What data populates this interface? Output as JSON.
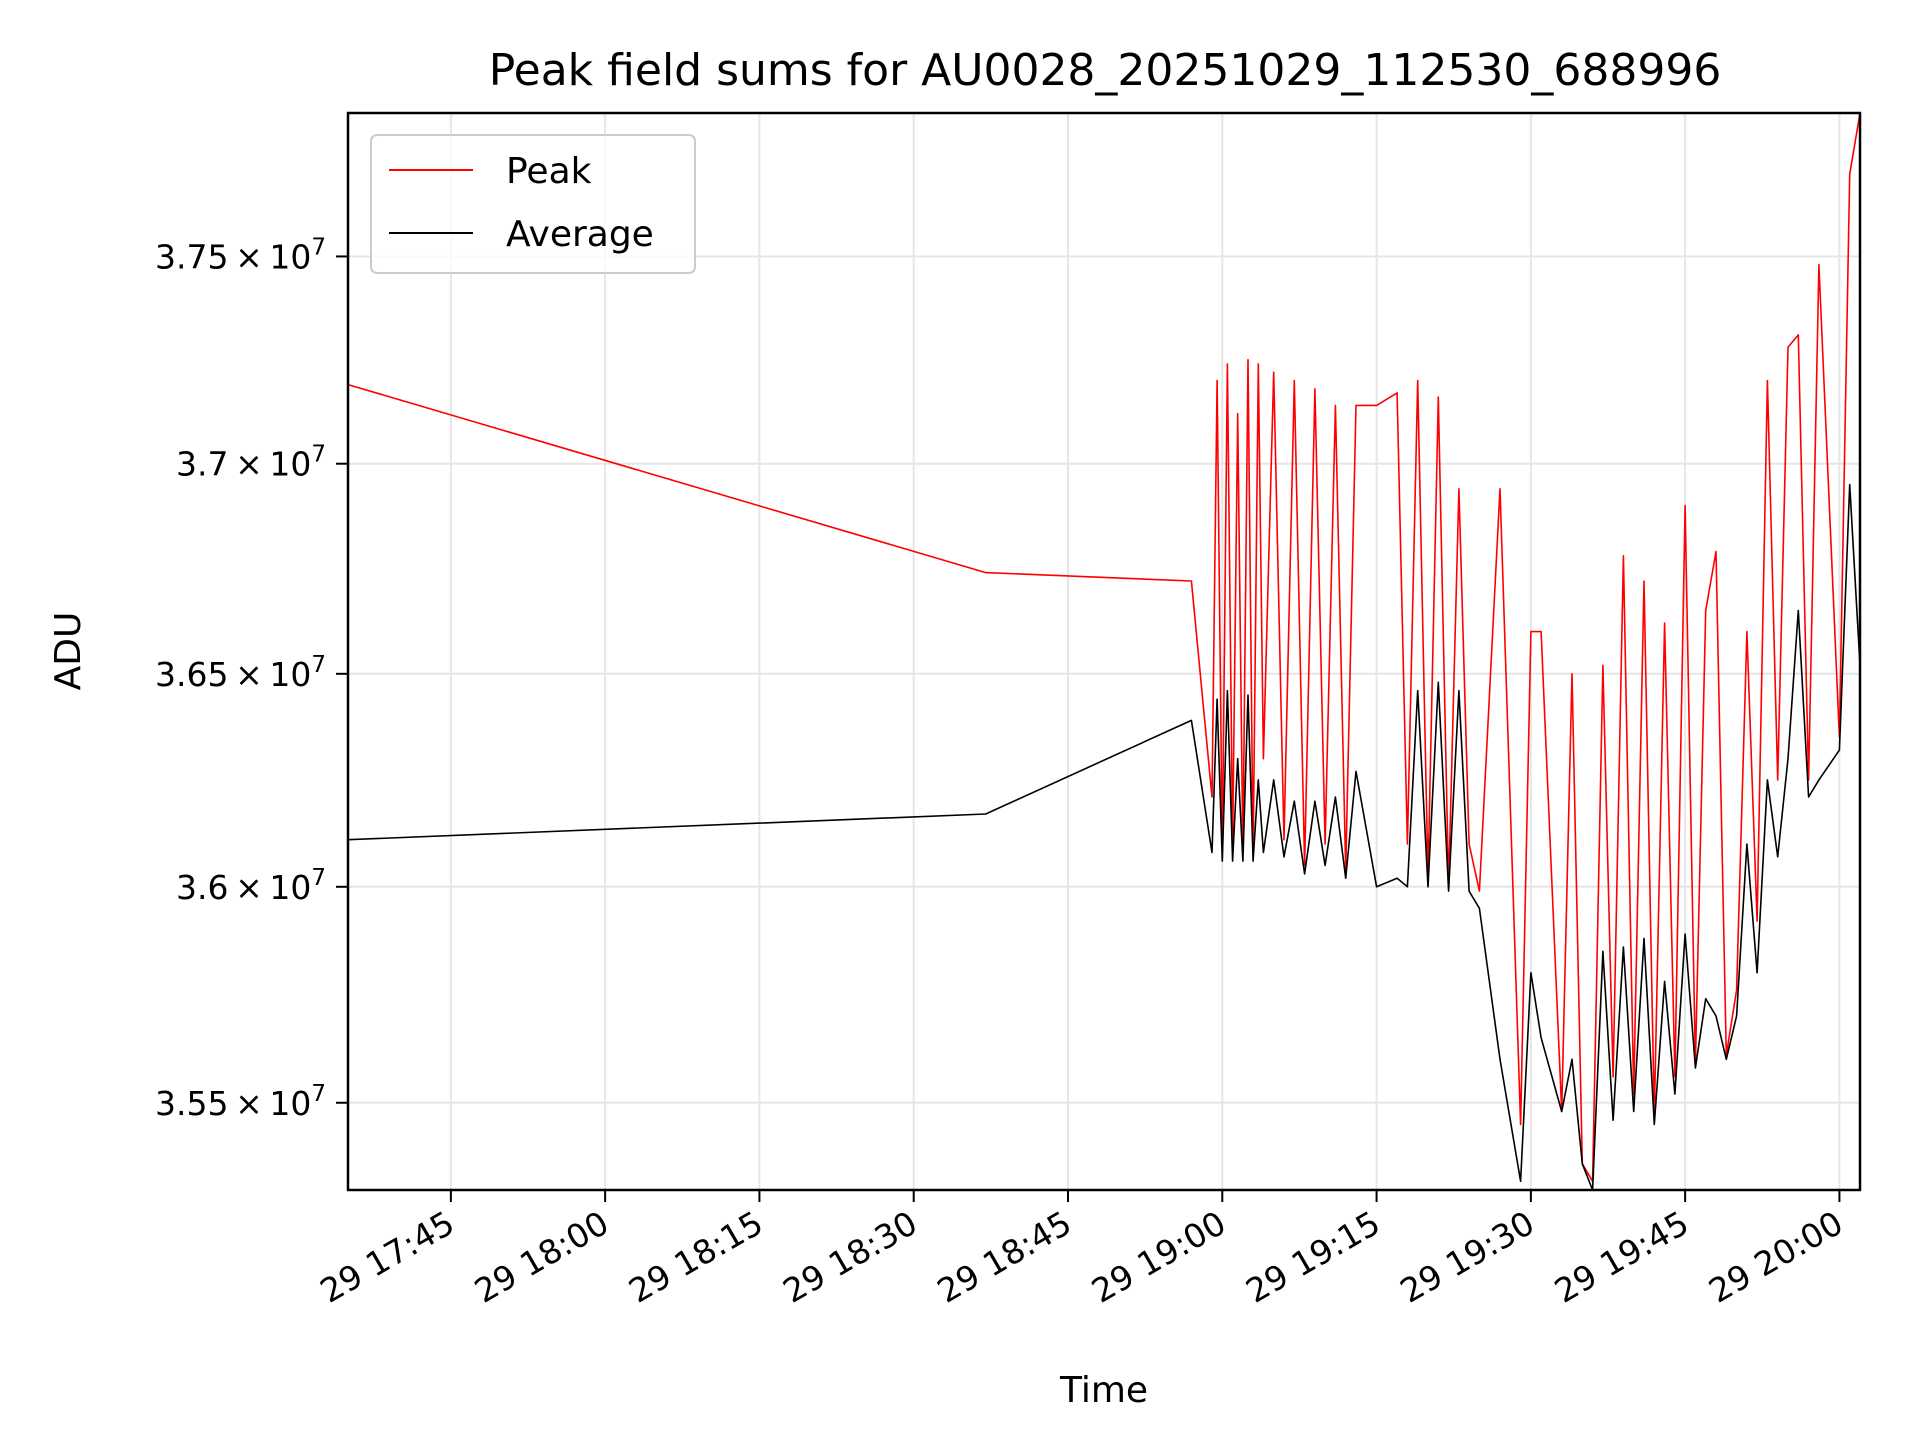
{
  "chart_data": {
    "type": "line",
    "title": "Peak field sums for AU0028_20251029_112530_688996",
    "xlabel": "Time",
    "ylabel": "ADU",
    "x_axis_type": "time",
    "x_range": [
      "2025-10-29 17:35",
      "2025-10-29 20:02"
    ],
    "x_ticks": [
      "2025-10-29 17:45",
      "2025-10-29 18:00",
      "2025-10-29 18:15",
      "2025-10-29 18:30",
      "2025-10-29 18:45",
      "2025-10-29 19:00",
      "2025-10-29 19:15",
      "2025-10-29 19:30",
      "2025-10-29 19:45",
      "2025-10-29 20:00"
    ],
    "x_tick_labels": [
      "29 17:45",
      "29 18:00",
      "29 18:15",
      "29 18:30",
      "29 18:45",
      "29 19:00",
      "29 19:15",
      "29 19:30",
      "29 19:45",
      "29 20:00"
    ],
    "y_scale": "log",
    "ylim": [
      35300000,
      37850000
    ],
    "y_ticks": [
      35500000,
      36000000,
      36500000,
      37000000,
      37500000
    ],
    "y_tick_mantissas": [
      "3.55",
      "3.6",
      "3.65",
      "3.7",
      "3.75"
    ],
    "y_tick_base": "10",
    "y_tick_exponent": "7",
    "grid": true,
    "legend_position": "top-left",
    "series": [
      {
        "name": "Peak",
        "color": "#ff0000",
        "x": [
          "2025-10-29 17:35",
          "2025-10-29 18:37",
          "2025-10-29 18:57",
          "2025-10-29 18:59",
          "2025-10-29 18:59:30",
          "2025-10-29 19:00",
          "2025-10-29 19:00:30",
          "2025-10-29 19:01",
          "2025-10-29 19:01:30",
          "2025-10-29 19:02",
          "2025-10-29 19:02:30",
          "2025-10-29 19:03",
          "2025-10-29 19:03:30",
          "2025-10-29 19:04",
          "2025-10-29 19:05",
          "2025-10-29 19:06",
          "2025-10-29 19:07",
          "2025-10-29 19:08",
          "2025-10-29 19:09",
          "2025-10-29 19:10",
          "2025-10-29 19:11",
          "2025-10-29 19:12",
          "2025-10-29 19:13",
          "2025-10-29 19:15",
          "2025-10-29 19:17",
          "2025-10-29 19:18",
          "2025-10-29 19:19",
          "2025-10-29 19:20",
          "2025-10-29 19:21",
          "2025-10-29 19:22",
          "2025-10-29 19:23",
          "2025-10-29 19:24",
          "2025-10-29 19:25",
          "2025-10-29 19:27",
          "2025-10-29 19:29",
          "2025-10-29 19:30",
          "2025-10-29 19:31",
          "2025-10-29 19:33",
          "2025-10-29 19:34",
          "2025-10-29 19:35",
          "2025-10-29 19:36",
          "2025-10-29 19:37",
          "2025-10-29 19:38",
          "2025-10-29 19:39",
          "2025-10-29 19:40",
          "2025-10-29 19:41",
          "2025-10-29 19:42",
          "2025-10-29 19:43",
          "2025-10-29 19:44",
          "2025-10-29 19:45",
          "2025-10-29 19:46",
          "2025-10-29 19:47",
          "2025-10-29 19:48",
          "2025-10-29 19:49",
          "2025-10-29 19:50",
          "2025-10-29 19:51",
          "2025-10-29 19:52",
          "2025-10-29 19:53",
          "2025-10-29 19:54",
          "2025-10-29 19:55",
          "2025-10-29 19:56",
          "2025-10-29 19:57",
          "2025-10-29 19:58",
          "2025-10-29 20:00",
          "2025-10-29 20:01",
          "2025-10-29 20:02"
        ],
        "values": [
          37190000,
          36740000,
          36720000,
          36210000,
          37200000,
          36080000,
          37240000,
          36100000,
          37120000,
          36080000,
          37250000,
          36070000,
          37240000,
          36300000,
          37220000,
          36110000,
          37200000,
          36050000,
          37180000,
          36100000,
          37140000,
          36040000,
          37140000,
          37140000,
          37170000,
          36100000,
          37200000,
          36020000,
          37160000,
          36000000,
          36940000,
          36100000,
          35990000,
          36940000,
          35450000,
          36600000,
          36600000,
          35480000,
          36500000,
          35360000,
          35320000,
          36520000,
          35560000,
          36780000,
          35520000,
          36720000,
          35470000,
          36620000,
          35560000,
          36900000,
          35590000,
          36650000,
          36790000,
          35610000,
          35760000,
          36600000,
          35920000,
          37200000,
          36250000,
          37280000,
          37310000,
          36250000,
          37480000,
          36350000,
          37700000,
          37850000
        ]
      },
      {
        "name": "Average",
        "color": "#000000",
        "x": [
          "2025-10-29 17:35",
          "2025-10-29 18:37",
          "2025-10-29 18:57",
          "2025-10-29 18:59",
          "2025-10-29 18:59:30",
          "2025-10-29 19:00",
          "2025-10-29 19:00:30",
          "2025-10-29 19:01",
          "2025-10-29 19:01:30",
          "2025-10-29 19:02",
          "2025-10-29 19:02:30",
          "2025-10-29 19:03",
          "2025-10-29 19:03:30",
          "2025-10-29 19:04",
          "2025-10-29 19:05",
          "2025-10-29 19:06",
          "2025-10-29 19:07",
          "2025-10-29 19:08",
          "2025-10-29 19:09",
          "2025-10-29 19:10",
          "2025-10-29 19:11",
          "2025-10-29 19:12",
          "2025-10-29 19:13",
          "2025-10-29 19:15",
          "2025-10-29 19:17",
          "2025-10-29 19:18",
          "2025-10-29 19:19",
          "2025-10-29 19:20",
          "2025-10-29 19:21",
          "2025-10-29 19:22",
          "2025-10-29 19:23",
          "2025-10-29 19:24",
          "2025-10-29 19:25",
          "2025-10-29 19:27",
          "2025-10-29 19:29",
          "2025-10-29 19:30",
          "2025-10-29 19:31",
          "2025-10-29 19:33",
          "2025-10-29 19:34",
          "2025-10-29 19:35",
          "2025-10-29 19:36",
          "2025-10-29 19:37",
          "2025-10-29 19:38",
          "2025-10-29 19:39",
          "2025-10-29 19:40",
          "2025-10-29 19:41",
          "2025-10-29 19:42",
          "2025-10-29 19:43",
          "2025-10-29 19:44",
          "2025-10-29 19:45",
          "2025-10-29 19:46",
          "2025-10-29 19:47",
          "2025-10-29 19:48",
          "2025-10-29 19:49",
          "2025-10-29 19:50",
          "2025-10-29 19:51",
          "2025-10-29 19:52",
          "2025-10-29 19:53",
          "2025-10-29 19:54",
          "2025-10-29 19:55",
          "2025-10-29 19:56",
          "2025-10-29 19:57",
          "2025-10-29 19:58",
          "2025-10-29 20:00",
          "2025-10-29 20:01",
          "2025-10-29 20:02"
        ],
        "values": [
          36110000,
          36170000,
          36390000,
          36080000,
          36440000,
          36060000,
          36460000,
          36060000,
          36300000,
          36060000,
          36450000,
          36060000,
          36250000,
          36080000,
          36250000,
          36070000,
          36200000,
          36030000,
          36200000,
          36050000,
          36210000,
          36020000,
          36270000,
          36000000,
          36020000,
          36000000,
          36460000,
          36000000,
          36480000,
          35990000,
          36460000,
          35990000,
          35950000,
          35600000,
          35320000,
          35800000,
          35650000,
          35480000,
          35600000,
          35360000,
          35300000,
          35850000,
          35460000,
          35860000,
          35480000,
          35880000,
          35450000,
          35780000,
          35520000,
          35890000,
          35580000,
          35740000,
          35700000,
          35600000,
          35700000,
          36100000,
          35800000,
          36250000,
          36070000,
          36300000,
          36650000,
          36210000,
          36250000,
          36320000,
          36950000,
          36520000
        ]
      }
    ]
  }
}
